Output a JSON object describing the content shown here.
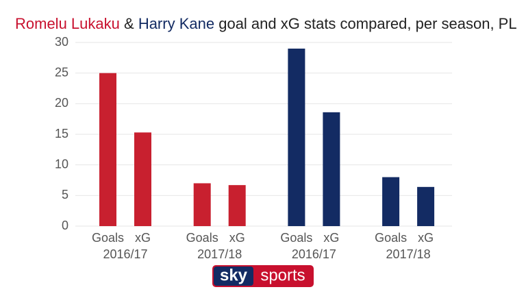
{
  "chart_data": {
    "type": "bar",
    "title_parts": [
      {
        "text": "Romelu Lukaku",
        "color": "#c8102e"
      },
      {
        "text": "&",
        "color": "#222222"
      },
      {
        "text": "Harry Kane",
        "color": "#132b63"
      },
      {
        "text": "goal and xG stats compared, per season, PL",
        "color": "#222222"
      }
    ],
    "categories": [
      "Goals",
      "xG",
      "Goals",
      "xG",
      "Goals",
      "xG",
      "Goals",
      "xG"
    ],
    "groups": [
      "2016/17",
      "2017/18",
      "2016/17",
      "2017/18"
    ],
    "values": [
      25,
      15.3,
      7,
      6.7,
      29,
      18.6,
      8,
      6.4
    ],
    "colors": [
      "#c8202f",
      "#c8202f",
      "#c8202f",
      "#c8202f",
      "#132b63",
      "#132b63",
      "#132b63",
      "#132b63"
    ],
    "ylim": [
      0,
      30
    ],
    "yticks": [
      0,
      5,
      10,
      15,
      20,
      25,
      30
    ],
    "grid": true
  },
  "logo": {
    "word1": "sky",
    "word2": "sports"
  }
}
